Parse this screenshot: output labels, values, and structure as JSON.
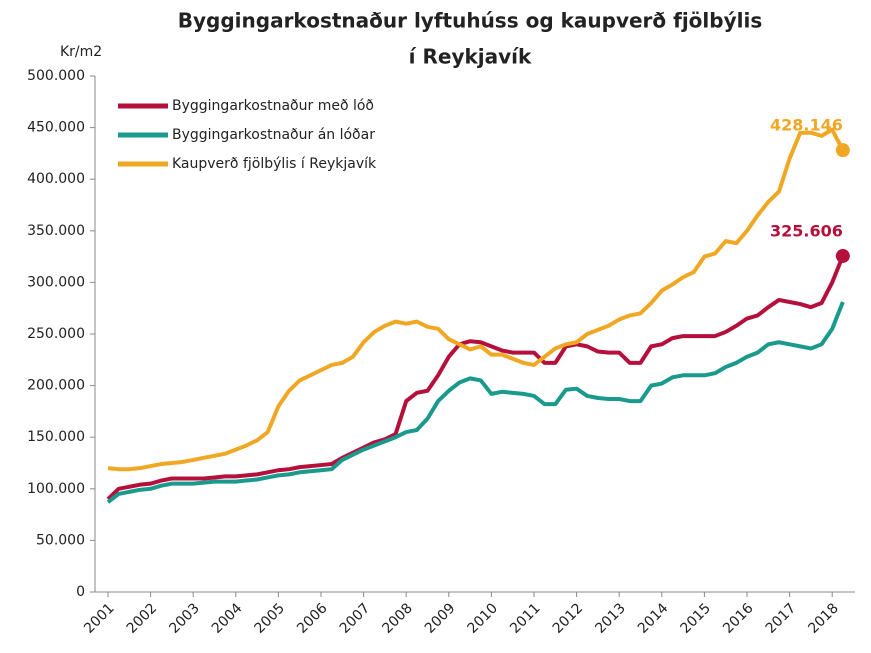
{
  "chart_data": {
    "type": "line",
    "title": [
      "Byggingarkostnaður lyftuhúss og kaupverð fjölbýlis",
      "í Reykjavík"
    ],
    "y_label": "Kr/m2",
    "categories": [
      "2001",
      null,
      null,
      null,
      "2002",
      null,
      null,
      null,
      "2003",
      null,
      null,
      null,
      "2004",
      null,
      null,
      null,
      "2005",
      null,
      null,
      null,
      "2006",
      null,
      null,
      null,
      "2007",
      null,
      null,
      null,
      "2008",
      null,
      null,
      null,
      "2009",
      null,
      null,
      null,
      "2010",
      null,
      null,
      null,
      "2011",
      null,
      null,
      null,
      "2012",
      null,
      null,
      null,
      "2013",
      null,
      null,
      null,
      "2014",
      null,
      null,
      null,
      "2015",
      null,
      null,
      null,
      "2016",
      null,
      null,
      null,
      "2017",
      null,
      null,
      null,
      "2018",
      null
    ],
    "ylim": [
      0,
      500000
    ],
    "yticks": [
      0,
      {
        "value": 50000,
        "label": "50.000"
      },
      {
        "value": 100000,
        "label": "100.000"
      },
      {
        "value": 150000,
        "label": "150.000"
      },
      {
        "value": 200000,
        "label": "200.000"
      },
      {
        "value": 250000,
        "label": "250.000"
      },
      {
        "value": 300000,
        "label": "300.000"
      },
      {
        "value": 350000,
        "label": "350.000"
      },
      {
        "value": 400000,
        "label": "400.000"
      },
      {
        "value": 450000,
        "label": "450.000"
      },
      {
        "value": 500000,
        "label": "500.000"
      }
    ],
    "legend": "upper left",
    "series": [
      {
        "name": "Byggingarkostnaður með lóð",
        "color": "#b5103c",
        "values": [
          90000,
          100000,
          102000,
          104000,
          105000,
          108000,
          110000,
          110000,
          110000,
          110000,
          111000,
          112000,
          112000,
          113000,
          114000,
          116000,
          118000,
          119000,
          121000,
          122000,
          123000,
          124000,
          130000,
          135000,
          140000,
          145000,
          148000,
          153000,
          185000,
          193000,
          195000,
          210000,
          228000,
          240000,
          243000,
          242000,
          238000,
          234000,
          232000,
          232000,
          232000,
          222000,
          222000,
          238000,
          240000,
          238000,
          233000,
          232000,
          232000,
          222000,
          222000,
          238000,
          240000,
          246000,
          248000,
          248000,
          248000,
          248000,
          252000,
          258000,
          265000,
          268000,
          276000,
          283000,
          281000,
          279000,
          276000,
          280000,
          300000,
          325606
        ],
        "value_labels": [
          null,
          null,
          null,
          null,
          null,
          null,
          null,
          null,
          null,
          null,
          null,
          null,
          null,
          null,
          null,
          null,
          null,
          null,
          null,
          null,
          null,
          null,
          null,
          null,
          null,
          null,
          null,
          null,
          null,
          null,
          null,
          null,
          null,
          null,
          null,
          null,
          null,
          null,
          null,
          null,
          null,
          null,
          null,
          null,
          null,
          null,
          null,
          null,
          null,
          null,
          null,
          null,
          null,
          null,
          null,
          null,
          null,
          null,
          null,
          null,
          null,
          null,
          null,
          null,
          null,
          null,
          null,
          null,
          null,
          "325.606"
        ]
      },
      {
        "name": "Byggingarkostnaður án lóðar",
        "color": "#1a9a8c",
        "values": [
          87000,
          95000,
          97000,
          99000,
          100000,
          103000,
          105000,
          105000,
          105000,
          106000,
          107000,
          107000,
          107000,
          108000,
          109000,
          111000,
          113000,
          114000,
          116000,
          117000,
          118000,
          119000,
          128000,
          133000,
          138000,
          142000,
          146000,
          150000,
          155000,
          157000,
          168000,
          185000,
          195000,
          203000,
          207000,
          205000,
          192000,
          194000,
          193000,
          192000,
          190000,
          182000,
          182000,
          196000,
          197000,
          190000,
          188000,
          187000,
          187000,
          185000,
          185000,
          200000,
          202000,
          208000,
          210000,
          210000,
          210000,
          212000,
          218000,
          222000,
          228000,
          232000,
          240000,
          242000,
          240000,
          238000,
          236000,
          240000,
          255000,
          281000
        ]
      },
      {
        "name": "Kaupverð fjölbýlis í Reykjavík",
        "color": "#f0a824",
        "values": [
          120000,
          119000,
          119000,
          120000,
          122000,
          124000,
          125000,
          126000,
          128000,
          130000,
          132000,
          134000,
          138000,
          142000,
          147000,
          155000,
          180000,
          195000,
          205000,
          210000,
          215000,
          220000,
          222000,
          228000,
          242000,
          252000,
          258000,
          262000,
          260000,
          262000,
          257000,
          255000,
          245000,
          240000,
          235000,
          238000,
          230000,
          230000,
          226000,
          222000,
          220000,
          228000,
          236000,
          240000,
          242000,
          250000,
          254000,
          258000,
          264000,
          268000,
          270000,
          280000,
          292000,
          298000,
          305000,
          310000,
          325000,
          328000,
          340000,
          338000,
          350000,
          365000,
          378000,
          388000,
          420000,
          445000,
          445000,
          442000,
          448000,
          428146
        ],
        "value_labels": [
          null,
          null,
          null,
          null,
          null,
          null,
          null,
          null,
          null,
          null,
          null,
          null,
          null,
          null,
          null,
          null,
          null,
          null,
          null,
          null,
          null,
          null,
          null,
          null,
          null,
          null,
          null,
          null,
          null,
          null,
          null,
          null,
          null,
          null,
          null,
          null,
          null,
          null,
          null,
          null,
          null,
          null,
          null,
          null,
          null,
          null,
          null,
          null,
          null,
          null,
          null,
          null,
          null,
          null,
          null,
          null,
          null,
          null,
          null,
          null,
          null,
          null,
          null,
          null,
          null,
          null,
          null,
          null,
          null,
          "428.146"
        ]
      }
    ]
  }
}
